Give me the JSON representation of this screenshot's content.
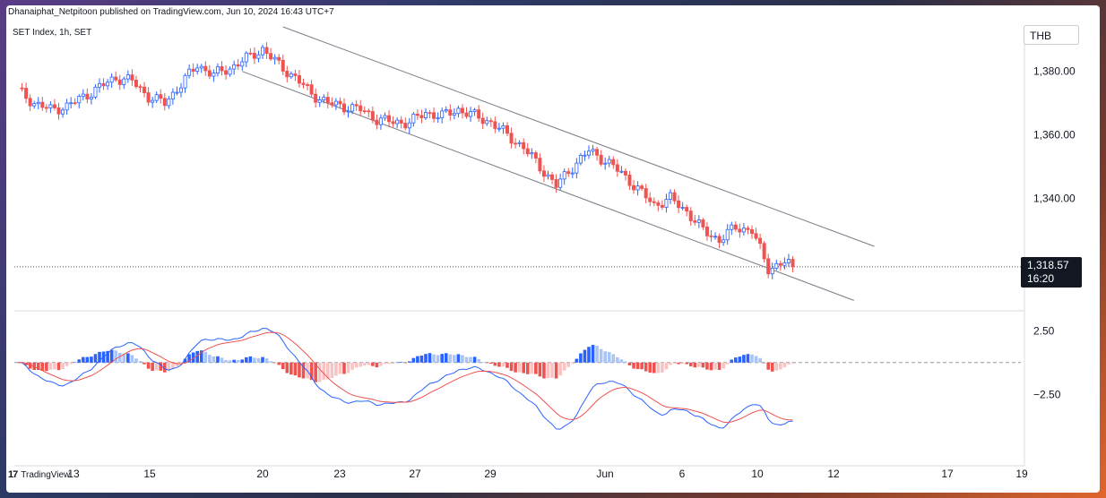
{
  "header": {
    "published_line": "Dhanaiphat_Netpitoon published on TradingView.com, Jun 10, 2024 16:43 UTC+7",
    "symbol_line": "SET Index, 1h, SET"
  },
  "currency": "THB",
  "last_price": {
    "price": "1,318.57",
    "countdown": "16:20"
  },
  "footer": {
    "brand": "TradingView"
  },
  "colors": {
    "up": "#2962ff",
    "down": "#ef5350",
    "hist_up_strong": "#2962ff",
    "hist_up_weak": "#a9c4f5",
    "hist_down_strong": "#ef5350",
    "hist_down_weak": "#f8c4c3",
    "macd_line": "#2962ff",
    "signal_line": "#ef5350",
    "channel": "#787b86"
  },
  "chart_data": [
    {
      "type": "candlestick",
      "title": "SET Index, 1h, SET",
      "x_ticks": [
        "13",
        "15",
        "20",
        "23",
        "27",
        "29",
        "Jun",
        "6",
        "10",
        "12",
        "17",
        "19"
      ],
      "y_ticks": [
        "1,380.00",
        "1,360.00",
        "1,340.00"
      ],
      "ylim": [
        1305,
        1394
      ],
      "grid": false,
      "last_value": 1318.57,
      "approx_close_path": [
        [
          0,
          1374
        ],
        [
          4,
          1370
        ],
        [
          8,
          1368
        ],
        [
          12,
          1369
        ],
        [
          16,
          1372
        ],
        [
          20,
          1375
        ],
        [
          24,
          1378
        ],
        [
          28,
          1377
        ],
        [
          32,
          1372
        ],
        [
          36,
          1370
        ],
        [
          40,
          1376
        ],
        [
          44,
          1382
        ],
        [
          48,
          1379
        ],
        [
          52,
          1381
        ],
        [
          56,
          1384
        ],
        [
          60,
          1387
        ],
        [
          64,
          1382
        ],
        [
          68,
          1378
        ],
        [
          72,
          1373
        ],
        [
          76,
          1370
        ],
        [
          80,
          1369
        ],
        [
          84,
          1368
        ],
        [
          88,
          1365
        ],
        [
          92,
          1364
        ],
        [
          96,
          1364
        ],
        [
          100,
          1367
        ],
        [
          104,
          1366
        ],
        [
          108,
          1368
        ],
        [
          112,
          1366
        ],
        [
          116,
          1364
        ],
        [
          120,
          1360
        ],
        [
          124,
          1356
        ],
        [
          128,
          1350
        ],
        [
          132,
          1344
        ],
        [
          136,
          1350
        ],
        [
          140,
          1355
        ],
        [
          144,
          1352
        ],
        [
          148,
          1348
        ],
        [
          152,
          1343
        ],
        [
          156,
          1338
        ],
        [
          160,
          1340
        ],
        [
          164,
          1336
        ],
        [
          168,
          1330
        ],
        [
          172,
          1327
        ],
        [
          176,
          1331
        ],
        [
          180,
          1330
        ],
        [
          184,
          1318
        ],
        [
          188,
          1320
        ],
        [
          190,
          1318.57
        ]
      ],
      "channel_lines": [
        {
          "name": "upper",
          "from": [
            65,
            1394
          ],
          "to": [
            210,
            1325
          ]
        },
        {
          "name": "lower",
          "from": [
            55,
            1380
          ],
          "to": [
            205,
            1308
          ]
        }
      ]
    },
    {
      "type": "macd",
      "y_ticks": [
        "2.50",
        "−2.50"
      ],
      "ylim": [
        -6,
        4
      ],
      "zero_line": 0
    }
  ]
}
